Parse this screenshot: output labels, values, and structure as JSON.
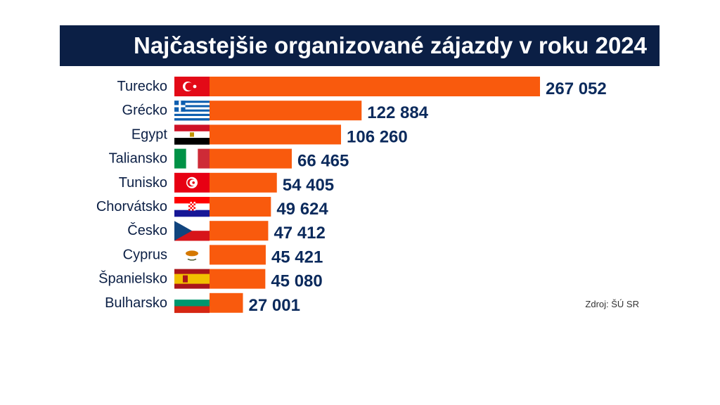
{
  "title": "Najčastejšie organizované zájazdy v roku 2024",
  "source": "Zdroj: ŠÚ SR",
  "colors": {
    "bar": "#f95a0d",
    "title_bg": "#0b1f45",
    "value_text": "#0b2a5c"
  },
  "chart_data": {
    "type": "bar",
    "orientation": "horizontal",
    "title": "Najčastejšie organizované zájazdy v roku 2024",
    "categories": [
      "Turecko",
      "Grécko",
      "Egypt",
      "Taliansko",
      "Tunisko",
      "Chorvátsko",
      "Česko",
      "Cyprus",
      "Španielsko",
      "Bulharsko"
    ],
    "values": [
      267052,
      122884,
      106260,
      66465,
      54405,
      49624,
      47412,
      45421,
      45080,
      27001
    ],
    "value_labels": [
      "267 052",
      "122 884",
      "106 260",
      "66 465",
      "54 405",
      "49 624",
      "47 412",
      "45 421",
      "45 080",
      "27 001"
    ],
    "flag_icons": [
      "turkey-flag-icon",
      "greece-flag-icon",
      "egypt-flag-icon",
      "italy-flag-icon",
      "tunisia-flag-icon",
      "croatia-flag-icon",
      "czechia-flag-icon",
      "cyprus-flag-icon",
      "spain-flag-icon",
      "bulgaria-flag-icon"
    ],
    "xlabel": "",
    "ylabel": "",
    "grid": false,
    "legend": "none"
  }
}
